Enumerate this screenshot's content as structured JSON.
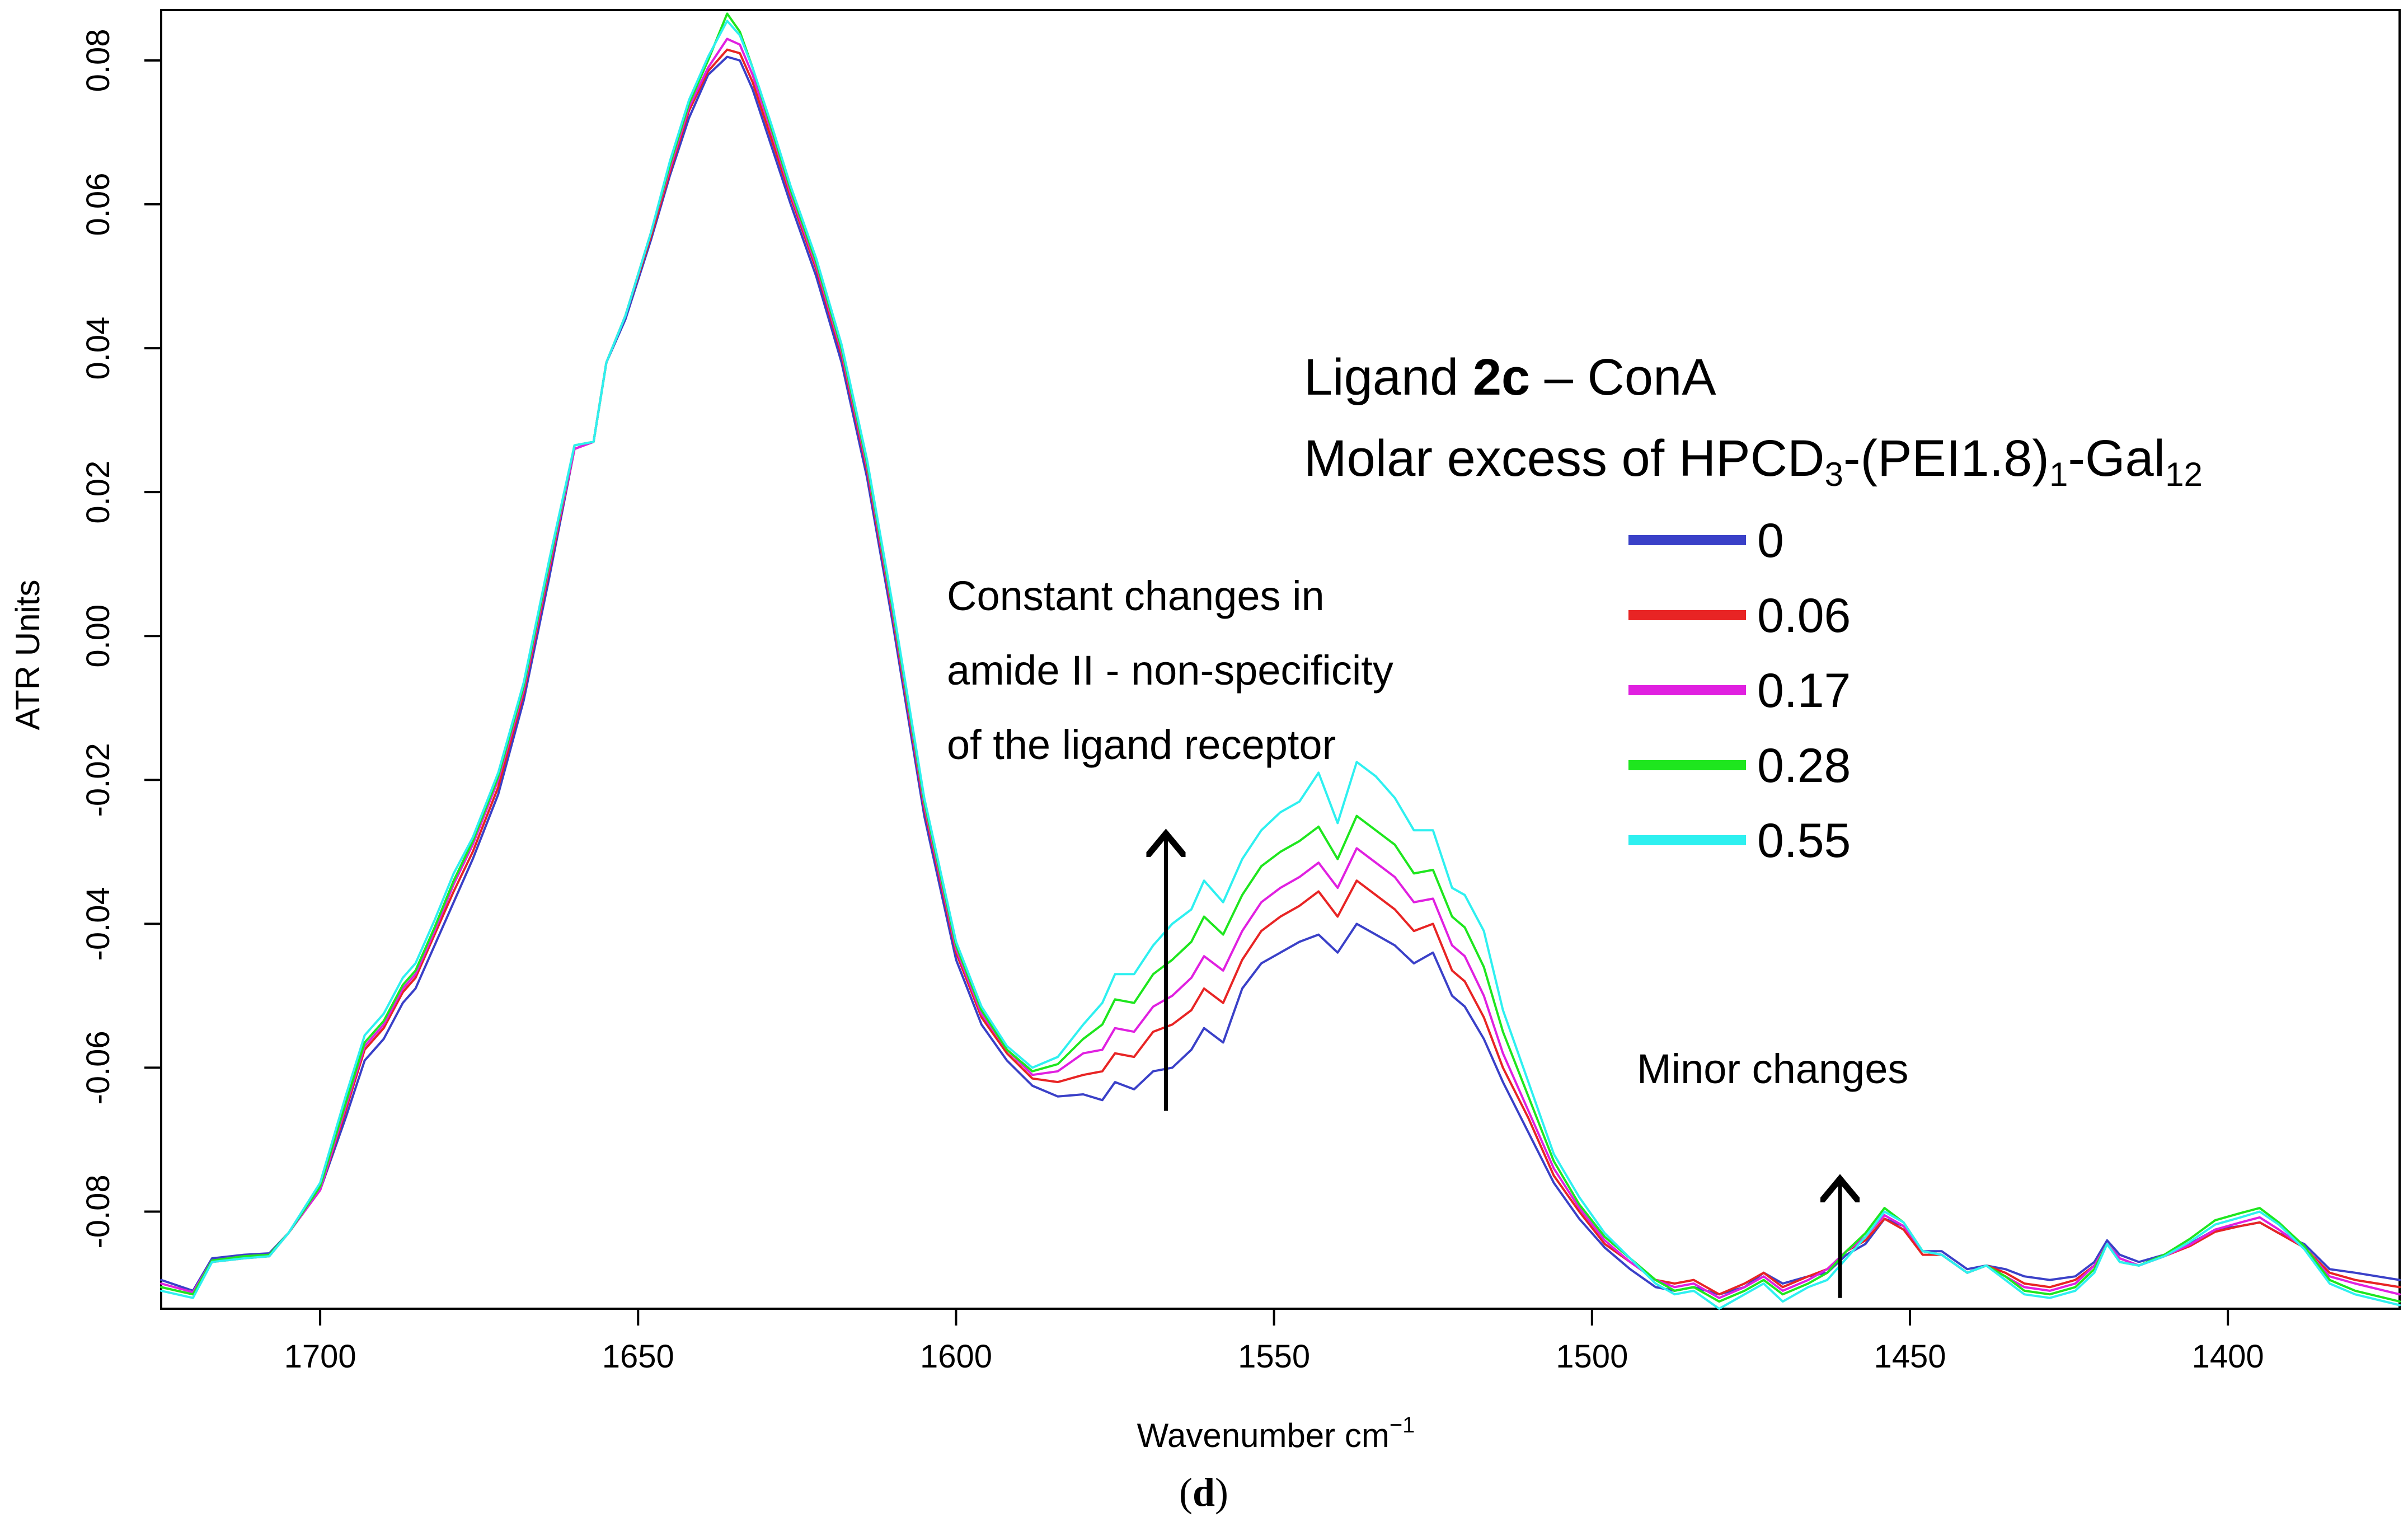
{
  "chart_data": {
    "type": "line",
    "xlabel": "Wavenumber cm",
    "xlabel_sup": "−1",
    "ylabel": "ATR Units",
    "xlim": [
      1725,
      1373
    ],
    "ylim": [
      -0.0935,
      0.087
    ],
    "x_reversed": true,
    "grid": false,
    "legend_placement": "center-right",
    "x_ticks": [
      1700,
      1650,
      1600,
      1550,
      1500,
      1450,
      1400
    ],
    "x_tick_labels": [
      "1700",
      "1650",
      "1600",
      "1550",
      "1500",
      "1450",
      "1400"
    ],
    "y_ticks": [
      -0.08,
      -0.06,
      -0.04,
      -0.02,
      0.0,
      0.02,
      0.04,
      0.06,
      0.08
    ],
    "y_tick_labels": [
      "-0.08",
      "-0.06",
      "-0.04",
      "-0.02",
      "0.00",
      "0.02",
      "0.04",
      "0.06",
      "0.08"
    ],
    "legend": {
      "title_line1": {
        "pre": "Ligand ",
        "bold": "2c",
        "post": " – ConA"
      },
      "title_line2": {
        "a": "Molar excess of HPCD",
        "sub1": "3",
        "b": "-(PEI1.8)",
        "sub2": "1",
        "c": "-Gal",
        "sub3": "12"
      }
    },
    "annotations": [
      {
        "id": "amide",
        "lines": [
          "Constant changes in",
          "amide II - non-specificity",
          "of the ligand receptor"
        ],
        "arrow_x": 1567,
        "arrow_from_y": -0.066,
        "arrow_to_y": -0.028
      },
      {
        "id": "minor",
        "lines": [
          "Minor changes"
        ],
        "arrow_x": 1461,
        "arrow_from_y": -0.092,
        "arrow_to_y": -0.076
      }
    ],
    "panel_label": "(d)",
    "x": [
      1725,
      1720,
      1717,
      1712,
      1708,
      1705,
      1700,
      1696,
      1693,
      1690,
      1687,
      1685,
      1682,
      1679,
      1676,
      1672,
      1668,
      1664,
      1660,
      1657,
      1655,
      1652,
      1648,
      1645,
      1642,
      1639,
      1636,
      1634,
      1632,
      1629,
      1626,
      1622,
      1618,
      1614,
      1610,
      1605,
      1600,
      1596,
      1592,
      1588,
      1584,
      1580,
      1577,
      1575,
      1572,
      1569,
      1566,
      1563,
      1561,
      1558,
      1555,
      1552,
      1549,
      1546,
      1543,
      1540,
      1537,
      1534,
      1531,
      1528,
      1525,
      1522,
      1520,
      1517,
      1514,
      1510,
      1506,
      1502,
      1498,
      1494,
      1490,
      1487,
      1484,
      1480,
      1476,
      1473,
      1470,
      1466,
      1463,
      1460,
      1457,
      1454,
      1451,
      1448,
      1445,
      1441,
      1438,
      1435,
      1432,
      1428,
      1424,
      1421,
      1419,
      1417,
      1414,
      1410,
      1406,
      1402,
      1398,
      1395,
      1392,
      1388,
      1384,
      1380,
      1373
    ],
    "series": [
      {
        "name": "0",
        "color": "#3a40c8",
        "values": [
          -0.0895,
          -0.091,
          -0.0865,
          -0.086,
          -0.0858,
          -0.083,
          -0.077,
          -0.067,
          -0.059,
          -0.056,
          -0.051,
          -0.049,
          -0.043,
          -0.037,
          -0.031,
          -0.022,
          -0.009,
          0.008,
          0.026,
          0.027,
          0.038,
          0.044,
          0.055,
          0.064,
          0.072,
          0.078,
          0.0805,
          0.08,
          0.076,
          0.068,
          0.06,
          0.05,
          0.038,
          0.022,
          0.002,
          -0.025,
          -0.045,
          -0.054,
          -0.059,
          -0.0625,
          -0.064,
          -0.0637,
          -0.0645,
          -0.062,
          -0.063,
          -0.0605,
          -0.06,
          -0.0575,
          -0.0545,
          -0.0565,
          -0.049,
          -0.0455,
          -0.044,
          -0.0425,
          -0.0415,
          -0.044,
          -0.04,
          -0.0415,
          -0.043,
          -0.0455,
          -0.044,
          -0.05,
          -0.0515,
          -0.056,
          -0.062,
          -0.069,
          -0.076,
          -0.081,
          -0.085,
          -0.088,
          -0.0905,
          -0.091,
          -0.0905,
          -0.0915,
          -0.0905,
          -0.0885,
          -0.09,
          -0.089,
          -0.0885,
          -0.086,
          -0.0845,
          -0.081,
          -0.082,
          -0.0855,
          -0.0855,
          -0.088,
          -0.0875,
          -0.088,
          -0.089,
          -0.0895,
          -0.089,
          -0.087,
          -0.084,
          -0.086,
          -0.087,
          -0.086,
          -0.0845,
          -0.0825,
          -0.082,
          -0.0815,
          -0.083,
          -0.0845,
          -0.088,
          -0.0885,
          -0.0895
        ]
      },
      {
        "name": "0.06",
        "color": "#e82424",
        "values": [
          -0.0905,
          -0.0915,
          -0.087,
          -0.0865,
          -0.0862,
          -0.083,
          -0.077,
          -0.066,
          -0.0575,
          -0.0545,
          -0.0495,
          -0.0475,
          -0.0415,
          -0.0355,
          -0.03,
          -0.021,
          -0.008,
          0.009,
          0.026,
          0.027,
          0.038,
          0.0445,
          0.0555,
          0.0645,
          0.073,
          0.0785,
          0.0815,
          0.081,
          0.077,
          0.069,
          0.061,
          0.051,
          0.039,
          0.023,
          0.003,
          -0.024,
          -0.044,
          -0.053,
          -0.058,
          -0.0615,
          -0.062,
          -0.061,
          -0.0605,
          -0.058,
          -0.0585,
          -0.055,
          -0.054,
          -0.052,
          -0.049,
          -0.051,
          -0.045,
          -0.041,
          -0.039,
          -0.0375,
          -0.0355,
          -0.039,
          -0.034,
          -0.036,
          -0.038,
          -0.041,
          -0.04,
          -0.0465,
          -0.048,
          -0.053,
          -0.06,
          -0.067,
          -0.075,
          -0.08,
          -0.0845,
          -0.087,
          -0.0895,
          -0.09,
          -0.0895,
          -0.0915,
          -0.09,
          -0.0885,
          -0.0905,
          -0.089,
          -0.088,
          -0.0855,
          -0.084,
          -0.081,
          -0.0825,
          -0.086,
          -0.086,
          -0.0885,
          -0.0875,
          -0.0885,
          -0.09,
          -0.0905,
          -0.0895,
          -0.0875,
          -0.0845,
          -0.0865,
          -0.0875,
          -0.0862,
          -0.0848,
          -0.0828,
          -0.082,
          -0.0815,
          -0.083,
          -0.085,
          -0.0885,
          -0.0895,
          -0.0905
        ]
      },
      {
        "name": "0.17",
        "color": "#e020e0",
        "values": [
          -0.09,
          -0.0912,
          -0.0868,
          -0.0862,
          -0.086,
          -0.083,
          -0.077,
          -0.0655,
          -0.057,
          -0.054,
          -0.049,
          -0.047,
          -0.041,
          -0.0345,
          -0.029,
          -0.02,
          -0.0075,
          0.0095,
          0.026,
          0.027,
          0.038,
          0.0445,
          0.056,
          0.065,
          0.0735,
          0.079,
          0.083,
          0.0822,
          0.078,
          0.07,
          0.0615,
          0.0515,
          0.0395,
          0.0235,
          0.0035,
          -0.0235,
          -0.0435,
          -0.0525,
          -0.0575,
          -0.061,
          -0.0605,
          -0.058,
          -0.0575,
          -0.0545,
          -0.055,
          -0.0515,
          -0.05,
          -0.0475,
          -0.0445,
          -0.0465,
          -0.041,
          -0.037,
          -0.035,
          -0.0335,
          -0.0315,
          -0.035,
          -0.0295,
          -0.0315,
          -0.0335,
          -0.037,
          -0.0365,
          -0.043,
          -0.0445,
          -0.05,
          -0.058,
          -0.066,
          -0.074,
          -0.0795,
          -0.084,
          -0.087,
          -0.0895,
          -0.0905,
          -0.09,
          -0.092,
          -0.0905,
          -0.089,
          -0.091,
          -0.0895,
          -0.088,
          -0.0855,
          -0.0835,
          -0.0805,
          -0.082,
          -0.0855,
          -0.086,
          -0.0885,
          -0.0875,
          -0.089,
          -0.0905,
          -0.091,
          -0.09,
          -0.0875,
          -0.0845,
          -0.0865,
          -0.0875,
          -0.0862,
          -0.0846,
          -0.0825,
          -0.0815,
          -0.0808,
          -0.0825,
          -0.085,
          -0.089,
          -0.09,
          -0.0915
        ]
      },
      {
        "name": "0.28",
        "color": "#1ee61e",
        "values": [
          -0.0905,
          -0.0915,
          -0.0868,
          -0.0862,
          -0.086,
          -0.083,
          -0.0765,
          -0.065,
          -0.0565,
          -0.0535,
          -0.0485,
          -0.0465,
          -0.0405,
          -0.034,
          -0.0285,
          -0.0195,
          -0.007,
          0.01,
          0.0265,
          0.027,
          0.038,
          0.0445,
          0.056,
          0.0655,
          0.074,
          0.08,
          0.0865,
          0.084,
          0.079,
          0.0705,
          0.062,
          0.052,
          0.04,
          0.024,
          0.004,
          -0.023,
          -0.043,
          -0.052,
          -0.0575,
          -0.0605,
          -0.0595,
          -0.056,
          -0.054,
          -0.0505,
          -0.051,
          -0.047,
          -0.045,
          -0.0425,
          -0.039,
          -0.0415,
          -0.036,
          -0.032,
          -0.03,
          -0.0285,
          -0.0265,
          -0.031,
          -0.025,
          -0.027,
          -0.029,
          -0.033,
          -0.0325,
          -0.039,
          -0.0405,
          -0.046,
          -0.055,
          -0.064,
          -0.073,
          -0.079,
          -0.0835,
          -0.0865,
          -0.0895,
          -0.091,
          -0.0905,
          -0.0925,
          -0.091,
          -0.0895,
          -0.0915,
          -0.09,
          -0.0885,
          -0.0855,
          -0.083,
          -0.0795,
          -0.0815,
          -0.0855,
          -0.086,
          -0.0885,
          -0.0875,
          -0.089,
          -0.091,
          -0.0915,
          -0.0905,
          -0.088,
          -0.0845,
          -0.087,
          -0.0875,
          -0.086,
          -0.0838,
          -0.0812,
          -0.0802,
          -0.0795,
          -0.0815,
          -0.0848,
          -0.0895,
          -0.091,
          -0.0925
        ]
      },
      {
        "name": "0.55",
        "color": "#2ef0f0",
        "values": [
          -0.091,
          -0.092,
          -0.087,
          -0.0865,
          -0.0862,
          -0.083,
          -0.076,
          -0.064,
          -0.0555,
          -0.0525,
          -0.0475,
          -0.0455,
          -0.0395,
          -0.033,
          -0.028,
          -0.019,
          -0.0065,
          0.0105,
          0.0265,
          0.027,
          0.038,
          0.0445,
          0.056,
          0.066,
          0.0745,
          0.0805,
          0.0855,
          0.0835,
          0.079,
          0.071,
          0.0625,
          0.0525,
          0.0405,
          0.0245,
          0.0045,
          -0.0225,
          -0.0425,
          -0.0515,
          -0.057,
          -0.06,
          -0.0585,
          -0.054,
          -0.051,
          -0.047,
          -0.047,
          -0.043,
          -0.04,
          -0.038,
          -0.034,
          -0.037,
          -0.031,
          -0.027,
          -0.0245,
          -0.023,
          -0.019,
          -0.026,
          -0.0175,
          -0.0195,
          -0.0225,
          -0.027,
          -0.027,
          -0.035,
          -0.036,
          -0.041,
          -0.052,
          -0.062,
          -0.072,
          -0.078,
          -0.083,
          -0.0865,
          -0.09,
          -0.0915,
          -0.091,
          -0.0935,
          -0.0915,
          -0.09,
          -0.0925,
          -0.0905,
          -0.0895,
          -0.0865,
          -0.0835,
          -0.08,
          -0.0815,
          -0.0855,
          -0.086,
          -0.0885,
          -0.0875,
          -0.0895,
          -0.0915,
          -0.092,
          -0.091,
          -0.0885,
          -0.0845,
          -0.087,
          -0.0875,
          -0.0862,
          -0.0842,
          -0.0818,
          -0.0808,
          -0.08,
          -0.0818,
          -0.0852,
          -0.09,
          -0.0915,
          -0.093
        ]
      }
    ]
  }
}
